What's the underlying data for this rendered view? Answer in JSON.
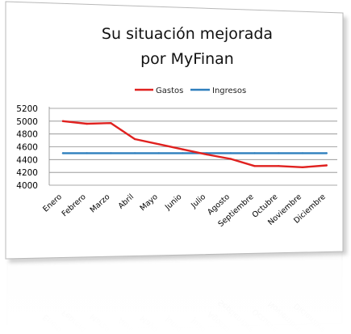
{
  "chart_data": {
    "type": "line",
    "title_lines": [
      "Su situación mejorada",
      "por MyFinan"
    ],
    "categories": [
      "Enero",
      "Febrero",
      "Marzo",
      "Abril",
      "Mayo",
      "Junio",
      "Julio",
      "Agosto",
      "Septiembre",
      "Octubre",
      "Noviembre",
      "Diciembre"
    ],
    "series": [
      {
        "name": "Gastos",
        "color": "#e0211f",
        "values": [
          5000,
          4960,
          4970,
          4720,
          4640,
          4560,
          4480,
          4410,
          4300,
          4300,
          4280,
          4310
        ]
      },
      {
        "name": "Ingresos",
        "color": "#2e7fbd",
        "values": [
          4500,
          4500,
          4500,
          4500,
          4500,
          4500,
          4500,
          4500,
          4500,
          4500,
          4500,
          4500
        ]
      }
    ],
    "y_ticks": [
      "5200",
      "5000",
      "4800",
      "4600",
      "4400",
      "4200",
      "4000"
    ],
    "ylim": [
      4000,
      5200
    ],
    "xlabel": "",
    "ylabel": "",
    "grid": true,
    "legend_position": "top"
  }
}
